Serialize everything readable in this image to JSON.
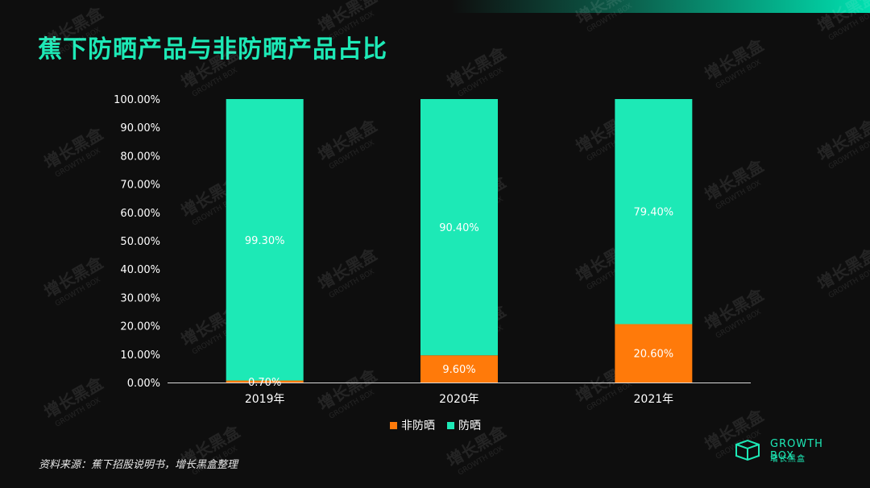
{
  "title": "蕉下防晒产品与非防晒产品占比",
  "source": "资料来源：蕉下招股说明书，增长黑盒整理",
  "brand": {
    "name": "GROWTH BOX",
    "sub": "增长黑盒",
    "logo_icon": "box-icon"
  },
  "watermark": {
    "main": "增长黑盒",
    "sub": "GROWTH BOX"
  },
  "colors": {
    "background": "#0e0e0e",
    "protect": "#1de9b6",
    "non_protect": "#ff7a0a",
    "axis_text": "#ffffff",
    "title": "#1de9b6"
  },
  "chart_data": {
    "type": "bar",
    "stacked": true,
    "title": "",
    "xlabel": "",
    "ylabel": "",
    "ylim": [
      0,
      100
    ],
    "yticks": [
      "0.00%",
      "10.00%",
      "20.00%",
      "30.00%",
      "40.00%",
      "50.00%",
      "60.00%",
      "70.00%",
      "80.00%",
      "90.00%",
      "100.00%"
    ],
    "categories": [
      "2019年",
      "2020年",
      "2021年"
    ],
    "series": [
      {
        "name": "非防晒",
        "values": [
          0.7,
          9.6,
          20.6
        ],
        "labels": [
          "0.70%",
          "9.60%",
          "20.60%"
        ],
        "color": "#ff7a0a"
      },
      {
        "name": "防晒",
        "values": [
          99.3,
          90.4,
          79.4
        ],
        "labels": [
          "99.30%",
          "90.40%",
          "79.40%"
        ],
        "color": "#1de9b6"
      }
    ],
    "legend": {
      "position": "bottom",
      "entries": [
        "非防晒",
        "防晒"
      ]
    },
    "grid": false
  }
}
